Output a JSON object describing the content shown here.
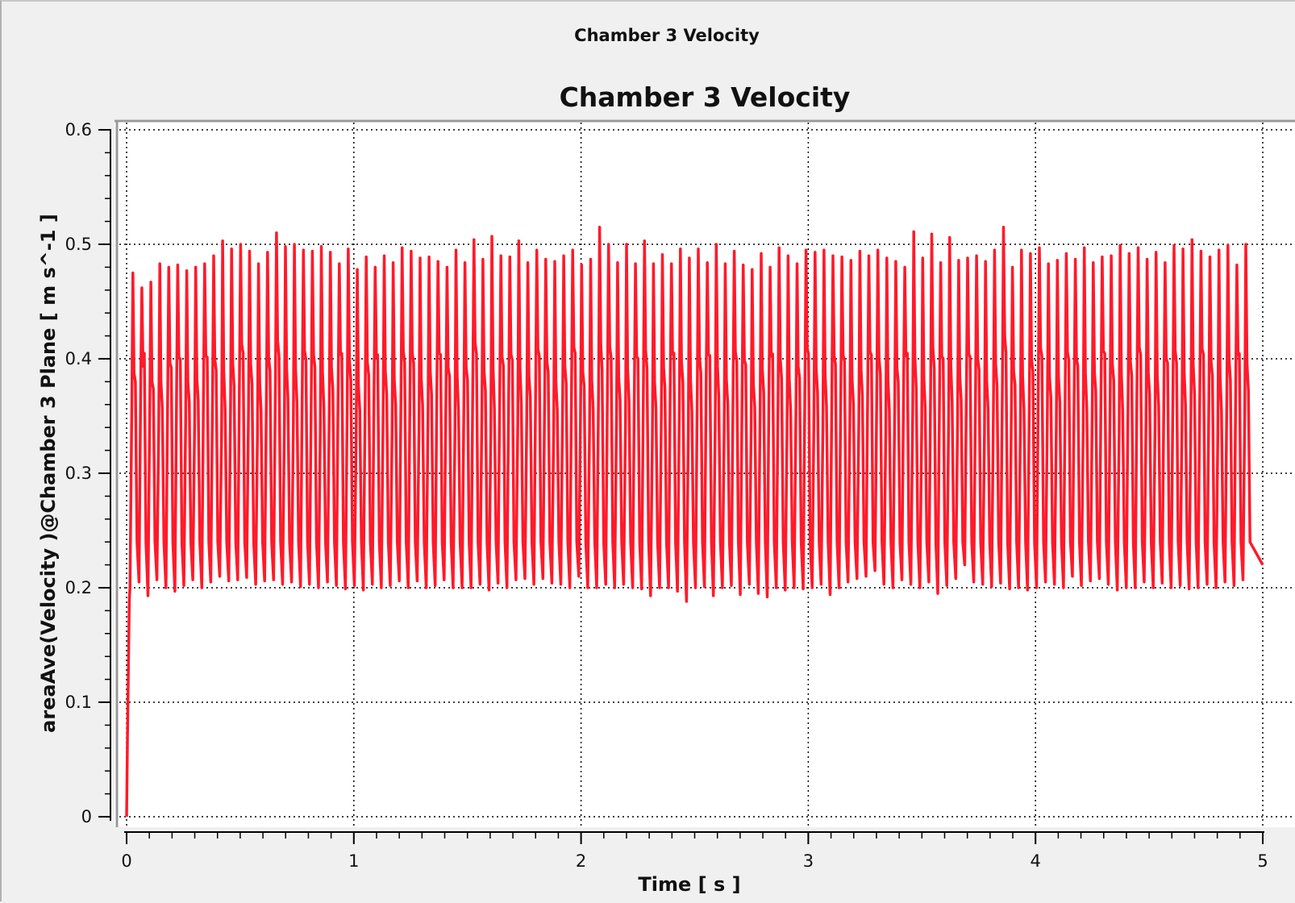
{
  "window": {
    "title": "Chamber 3 Velocity"
  },
  "colors": {
    "series": "#ff1a2a",
    "background": "#f0f0f0",
    "plot_background": "#ffffff",
    "grid": "#000000"
  },
  "chart_data": {
    "type": "line",
    "title": "Chamber 3 Velocity",
    "xlabel": "Time [ s ]",
    "ylabel": "areaAve(Velocity )@Chamber 3 Plane [ m s^-1 ]",
    "xlim": [
      0,
      5
    ],
    "ylim": [
      0,
      0.6
    ],
    "xticks": [
      "0",
      "1",
      "2",
      "3",
      "4",
      "5"
    ],
    "yticks": [
      "0",
      "0.1",
      "0.2",
      "0.3",
      "0.4",
      "0.5",
      "0.6"
    ],
    "grid": true,
    "grid_style": "dotted",
    "legend": "none",
    "series": [
      {
        "color": "#ff1a2a",
        "description_of_shape": "rapid ramp from 0 to ~0.2 at t=0, then sustained oscillation between ~0.19-0.21 (troughs) and ~0.46-0.515 (peaks), period about 0.039 s",
        "period": 0.0395,
        "peaks": [
          0.475,
          0.462,
          0.467,
          0.483,
          0.48,
          0.482,
          0.477,
          0.48,
          0.483,
          0.49,
          0.503,
          0.496,
          0.5,
          0.494,
          0.483,
          0.493,
          0.51,
          0.498,
          0.5,
          0.495,
          0.494,
          0.498,
          0.493,
          0.483,
          0.496,
          0.478,
          0.489,
          0.48,
          0.49,
          0.484,
          0.497,
          0.494,
          0.488,
          0.489,
          0.485,
          0.48,
          0.495,
          0.484,
          0.504,
          0.487,
          0.507,
          0.49,
          0.489,
          0.503,
          0.484,
          0.495,
          0.487,
          0.485,
          0.49,
          0.495,
          0.482,
          0.487,
          0.515,
          0.5,
          0.484,
          0.5,
          0.483,
          0.503,
          0.483,
          0.491,
          0.483,
          0.496,
          0.488,
          0.496,
          0.484,
          0.5,
          0.483,
          0.494,
          0.482,
          0.478,
          0.492,
          0.48,
          0.497,
          0.49,
          0.483,
          0.495,
          0.493,
          0.495,
          0.49,
          0.489,
          0.486,
          0.494,
          0.49,
          0.495,
          0.488,
          0.485,
          0.48,
          0.511,
          0.488,
          0.509,
          0.484,
          0.506,
          0.486,
          0.488,
          0.49,
          0.485,
          0.495,
          0.515,
          0.48,
          0.495,
          0.492,
          0.497,
          0.483,
          0.486,
          0.492,
          0.487,
          0.497,
          0.484,
          0.489,
          0.49,
          0.499,
          0.492,
          0.497,
          0.487,
          0.493,
          0.484,
          0.499,
          0.496,
          0.504,
          0.494,
          0.489,
          0.495,
          0.499,
          0.482,
          0.5,
          0.498,
          0.507,
          0.49,
          0.486
        ],
        "troughs": [
          0.2,
          0.205,
          0.193,
          0.207,
          0.2,
          0.197,
          0.202,
          0.207,
          0.2,
          0.205,
          0.21,
          0.206,
          0.207,
          0.209,
          0.203,
          0.206,
          0.207,
          0.203,
          0.205,
          0.201,
          0.203,
          0.2,
          0.205,
          0.202,
          0.199,
          0.202,
          0.198,
          0.203,
          0.2,
          0.202,
          0.206,
          0.2,
          0.206,
          0.2,
          0.202,
          0.207,
          0.2,
          0.2,
          0.2,
          0.203,
          0.198,
          0.204,
          0.2,
          0.207,
          0.208,
          0.203,
          0.208,
          0.204,
          0.203,
          0.2,
          0.21,
          0.2,
          0.2,
          0.203,
          0.2,
          0.203,
          0.2,
          0.199,
          0.193,
          0.2,
          0.2,
          0.197,
          0.188,
          0.2,
          0.201,
          0.193,
          0.2,
          0.202,
          0.194,
          0.203,
          0.195,
          0.192,
          0.2,
          0.198,
          0.2,
          0.199,
          0.2,
          0.203,
          0.194,
          0.2,
          0.205,
          0.208,
          0.21,
          0.215,
          0.203,
          0.2,
          0.207,
          0.203,
          0.2,
          0.205,
          0.195,
          0.202,
          0.208,
          0.22,
          0.205,
          0.203,
          0.201,
          0.204,
          0.199,
          0.2,
          0.198,
          0.2,
          0.205,
          0.203,
          0.2,
          0.21,
          0.202,
          0.206,
          0.208,
          0.203,
          0.198,
          0.2,
          0.2,
          0.205,
          0.2,
          0.204,
          0.2,
          0.202,
          0.199,
          0.2,
          0.203,
          0.2,
          0.205,
          0.202,
          0.207
        ]
      }
    ]
  }
}
